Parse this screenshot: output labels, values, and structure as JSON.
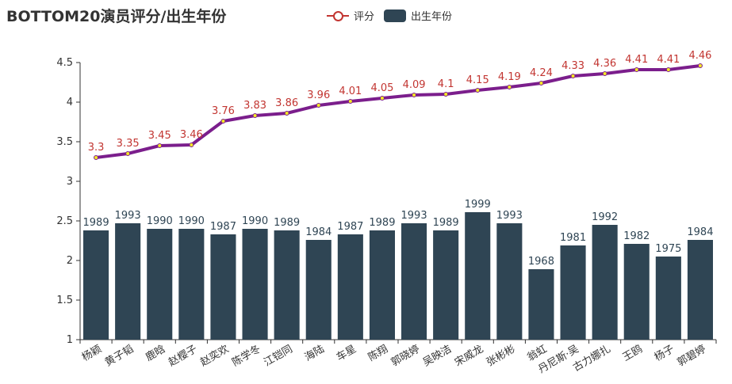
{
  "title": "BOTTOM20演员评分/出生年份",
  "legend": {
    "line_label": "评分",
    "bar_label": "出生年份"
  },
  "colors": {
    "line": "#7b1e8c",
    "line_label": "#c23531",
    "point_fill": "#f4e925",
    "bar": "#2f4554",
    "bar_label": "#2f4554",
    "axis": "#333333"
  },
  "chart_data": {
    "type": "bar",
    "title": "BOTTOM20演员评分/出生年份",
    "categories": [
      "杨颖",
      "黄子韬",
      "鹿晗",
      "赵樱子",
      "赵奕欢",
      "陈学冬",
      "江铠同",
      "海陆",
      "车星",
      "陈翔",
      "郭晓婷",
      "吴映洁",
      "宋威龙",
      "张彬彬",
      "翁虹",
      "丹尼斯·吴",
      "古力娜扎",
      "王鸥",
      "杨子",
      "郭碧婷"
    ],
    "ylim": [
      1,
      4.5
    ],
    "yticks": [
      "1",
      "1.5",
      "2",
      "2.5",
      "3",
      "3.5",
      "4",
      "4.5"
    ],
    "series": [
      {
        "name": "评分",
        "type": "line",
        "values": [
          3.3,
          3.35,
          3.45,
          3.46,
          3.76,
          3.83,
          3.86,
          3.96,
          4.01,
          4.05,
          4.09,
          4.1,
          4.15,
          4.19,
          4.24,
          4.33,
          4.36,
          4.41,
          4.41,
          4.46
        ],
        "labels": [
          "3.3",
          "3.35",
          "3.45",
          "3.46",
          "3.76",
          "3.83",
          "3.86",
          "3.96",
          "4.01",
          "4.05",
          "4.09",
          "4.1",
          "4.15",
          "4.19",
          "4.24",
          "4.33",
          "4.36",
          "4.41",
          "4.41",
          "4.46"
        ]
      },
      {
        "name": "出生年份",
        "type": "bar",
        "labels": [
          "1989",
          "1993",
          "1990",
          "1990",
          "1987",
          "1990",
          "1989",
          "1984",
          "1987",
          "1989",
          "1993",
          "1989",
          "1999",
          "1993",
          "1968",
          "1981",
          "1992",
          "1982",
          "1975",
          "1984"
        ],
        "values": [
          2.38,
          2.47,
          2.4,
          2.4,
          2.33,
          2.4,
          2.38,
          2.26,
          2.33,
          2.38,
          2.47,
          2.38,
          2.61,
          2.47,
          1.89,
          2.19,
          2.45,
          2.21,
          2.05,
          2.26
        ]
      }
    ],
    "grid": false,
    "legend_position": "top-center"
  }
}
